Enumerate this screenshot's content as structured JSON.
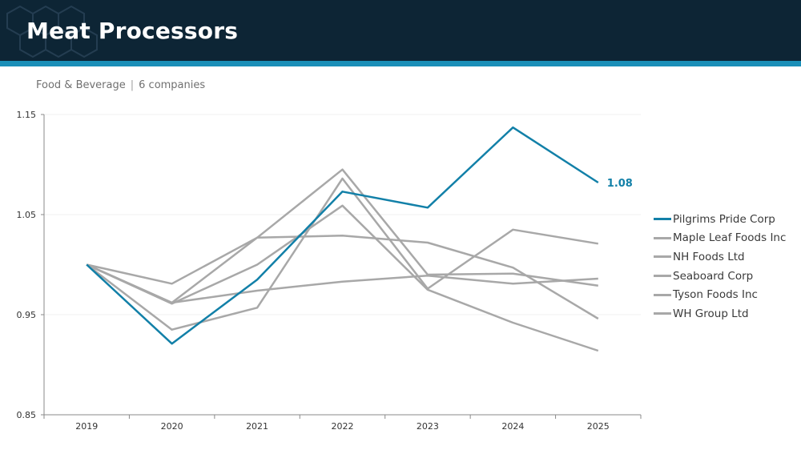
{
  "header": {
    "title": "Meat Processors"
  },
  "subtitle": {
    "sector": "Food & Beverage",
    "separator": "|",
    "count": "6 companies"
  },
  "colors": {
    "header_bg": "#0d2535",
    "accent_bar": "#1a8fb8",
    "highlight": "#1280a8",
    "muted": "#a8a8a8"
  },
  "chart_data": {
    "type": "line",
    "x": [
      "2019",
      "2020",
      "2021",
      "2022",
      "2023",
      "2024",
      "2025"
    ],
    "ylim": [
      0.85,
      1.15
    ],
    "yticks": [
      "0.85",
      "0.95",
      "1.05",
      "1.15"
    ],
    "grid": true,
    "legend": "right",
    "end_label": "1.08",
    "series": [
      {
        "name": "Pilgrims Pride Corp",
        "highlight": true,
        "values": [
          1.0,
          0.921,
          0.985,
          1.073,
          1.057,
          1.137,
          1.082
        ]
      },
      {
        "name": "Maple Leaf Foods Inc",
        "highlight": false,
        "values": [
          1.0,
          0.962,
          1.027,
          1.029,
          1.022,
          0.997,
          0.946
        ]
      },
      {
        "name": "NH Foods Ltd",
        "highlight": false,
        "values": [
          1.0,
          0.935,
          0.957,
          1.086,
          0.976,
          1.035,
          1.021
        ]
      },
      {
        "name": "Seaboard Corp",
        "highlight": false,
        "values": [
          1.0,
          0.981,
          1.027,
          1.095,
          0.99,
          0.991,
          0.979
        ]
      },
      {
        "name": "Tyson Foods Inc",
        "highlight": false,
        "values": [
          1.0,
          0.961,
          1.0,
          1.059,
          0.975,
          0.942,
          0.914
        ]
      },
      {
        "name": "WH Group Ltd",
        "highlight": false,
        "values": [
          1.0,
          0.962,
          0.974,
          0.983,
          0.989,
          0.981,
          0.986
        ]
      }
    ]
  }
}
